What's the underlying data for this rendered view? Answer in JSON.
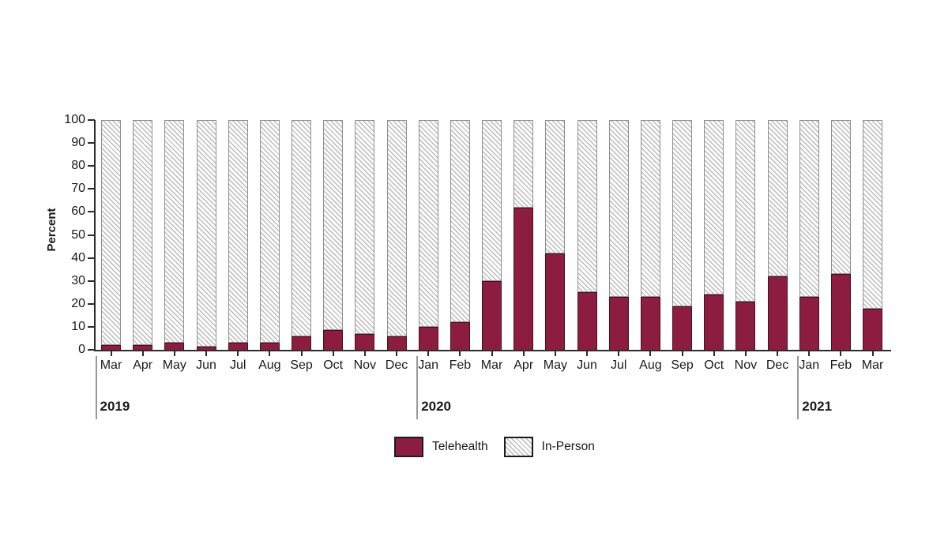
{
  "chart_data": {
    "type": "bar",
    "variant": "stacked-100-percent",
    "title": "",
    "ylabel": "Percent",
    "xlabel": "",
    "ylim": [
      0,
      100
    ],
    "yticks": [
      0,
      10,
      20,
      30,
      40,
      50,
      60,
      70,
      80,
      90,
      100
    ],
    "grid": false,
    "legend_position": "bottom-center",
    "categories": [
      "Mar",
      "Apr",
      "May",
      "Jun",
      "Jul",
      "Aug",
      "Sep",
      "Oct",
      "Nov",
      "Dec",
      "Jan",
      "Feb",
      "Mar",
      "Apr",
      "May",
      "Jun",
      "Jul",
      "Aug",
      "Sep",
      "Oct",
      "Nov",
      "Dec",
      "Jan",
      "Feb",
      "Mar"
    ],
    "year_groups": [
      {
        "label": "2019",
        "start_index": 0,
        "count": 10
      },
      {
        "label": "2020",
        "start_index": 10,
        "count": 12
      },
      {
        "label": "2021",
        "start_index": 22,
        "count": 3
      }
    ],
    "series": [
      {
        "name": "Telehealth",
        "style": "solid",
        "color": "#8C1D40",
        "values": [
          2,
          2,
          3,
          1.5,
          3,
          3,
          6,
          8.5,
          7,
          6,
          10,
          12,
          30,
          62,
          42,
          25,
          23,
          23,
          19,
          24,
          21,
          32,
          23,
          33,
          18
        ]
      },
      {
        "name": "In-Person",
        "style": "diagonal-hatch",
        "color": "#bdbdbd",
        "values": [
          98,
          98,
          97,
          98.5,
          97,
          97,
          94,
          91.5,
          93,
          94,
          90,
          88,
          70,
          38,
          58,
          75,
          77,
          77,
          81,
          76,
          79,
          68,
          77,
          67,
          82
        ]
      }
    ],
    "legend": [
      {
        "label": "Telehealth",
        "swatch": "solid-maroon"
      },
      {
        "label": "In-Person",
        "swatch": "diagonal-hatch"
      }
    ]
  },
  "colors": {
    "telehealth": "#8C1D40",
    "telehealth_border": "#45101f",
    "hatch_line": "#bdbdbd",
    "bar_border": "#8f8f8f",
    "axis": "#2b2b2b",
    "text": "#1a1a1a"
  }
}
